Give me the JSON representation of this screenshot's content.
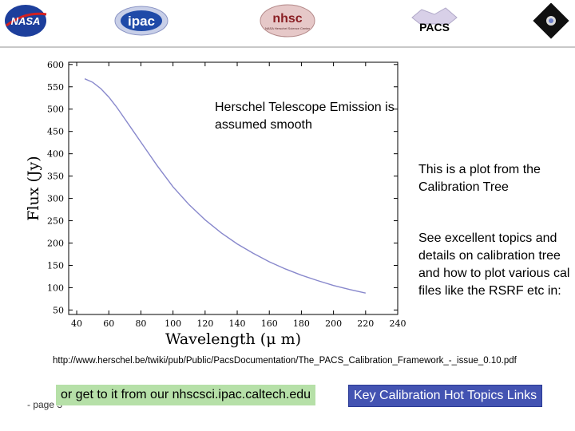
{
  "header": {
    "logos": [
      {
        "name": "nasa",
        "text": "NASA",
        "color": "#1d3f9c"
      },
      {
        "name": "ipac",
        "text": "ipac",
        "color": "#1f4aa8"
      },
      {
        "name": "nhsc",
        "text": "nhsc",
        "subtext": "NASA Herschel Science Center",
        "color": "#8a1f24"
      },
      {
        "name": "pacs",
        "text": "PACS"
      },
      {
        "name": "herschel"
      }
    ]
  },
  "notes": {
    "note1": "Herschel Telescope Emission is assumed smooth",
    "note2": "This is a plot from the Calibration Tree",
    "note3": "See excellent topics and details on calibration tree and how to plot various cal files like the RSRF etc in:"
  },
  "url": "http://www.herschel.be/twiki/pub/Public/PacsDocumentation/The_PACS_Calibration_Framework_-_issue_0.10.pdf",
  "footer": {
    "page_label": "- page 3",
    "banner_left": "or get to it from our nhscsci.ipac.caltech.edu",
    "banner_right": "Key Calibration Hot Topics Links"
  },
  "chart_data": {
    "type": "line",
    "title": "",
    "xlabel": "Wavelength (μ m)",
    "ylabel": "Flux (Jy)",
    "xlim": [
      35,
      240
    ],
    "ylim": [
      40,
      605
    ],
    "xticks": [
      40,
      60,
      80,
      100,
      120,
      140,
      160,
      180,
      200,
      220,
      240
    ],
    "yticks": [
      50,
      100,
      150,
      200,
      250,
      300,
      350,
      400,
      450,
      500,
      550,
      600
    ],
    "grid": false,
    "series": [
      {
        "color": "#8888cc",
        "x": [
          45,
          50,
          55,
          60,
          65,
          70,
          75,
          80,
          85,
          90,
          100,
          110,
          120,
          130,
          140,
          150,
          160,
          170,
          180,
          190,
          200,
          210,
          220
        ],
        "y": [
          568,
          560,
          546,
          527,
          504,
          478,
          452,
          426,
          400,
          374,
          326,
          286,
          252,
          223,
          198,
          177,
          158,
          142,
          128,
          116,
          105,
          96,
          88
        ]
      }
    ]
  }
}
